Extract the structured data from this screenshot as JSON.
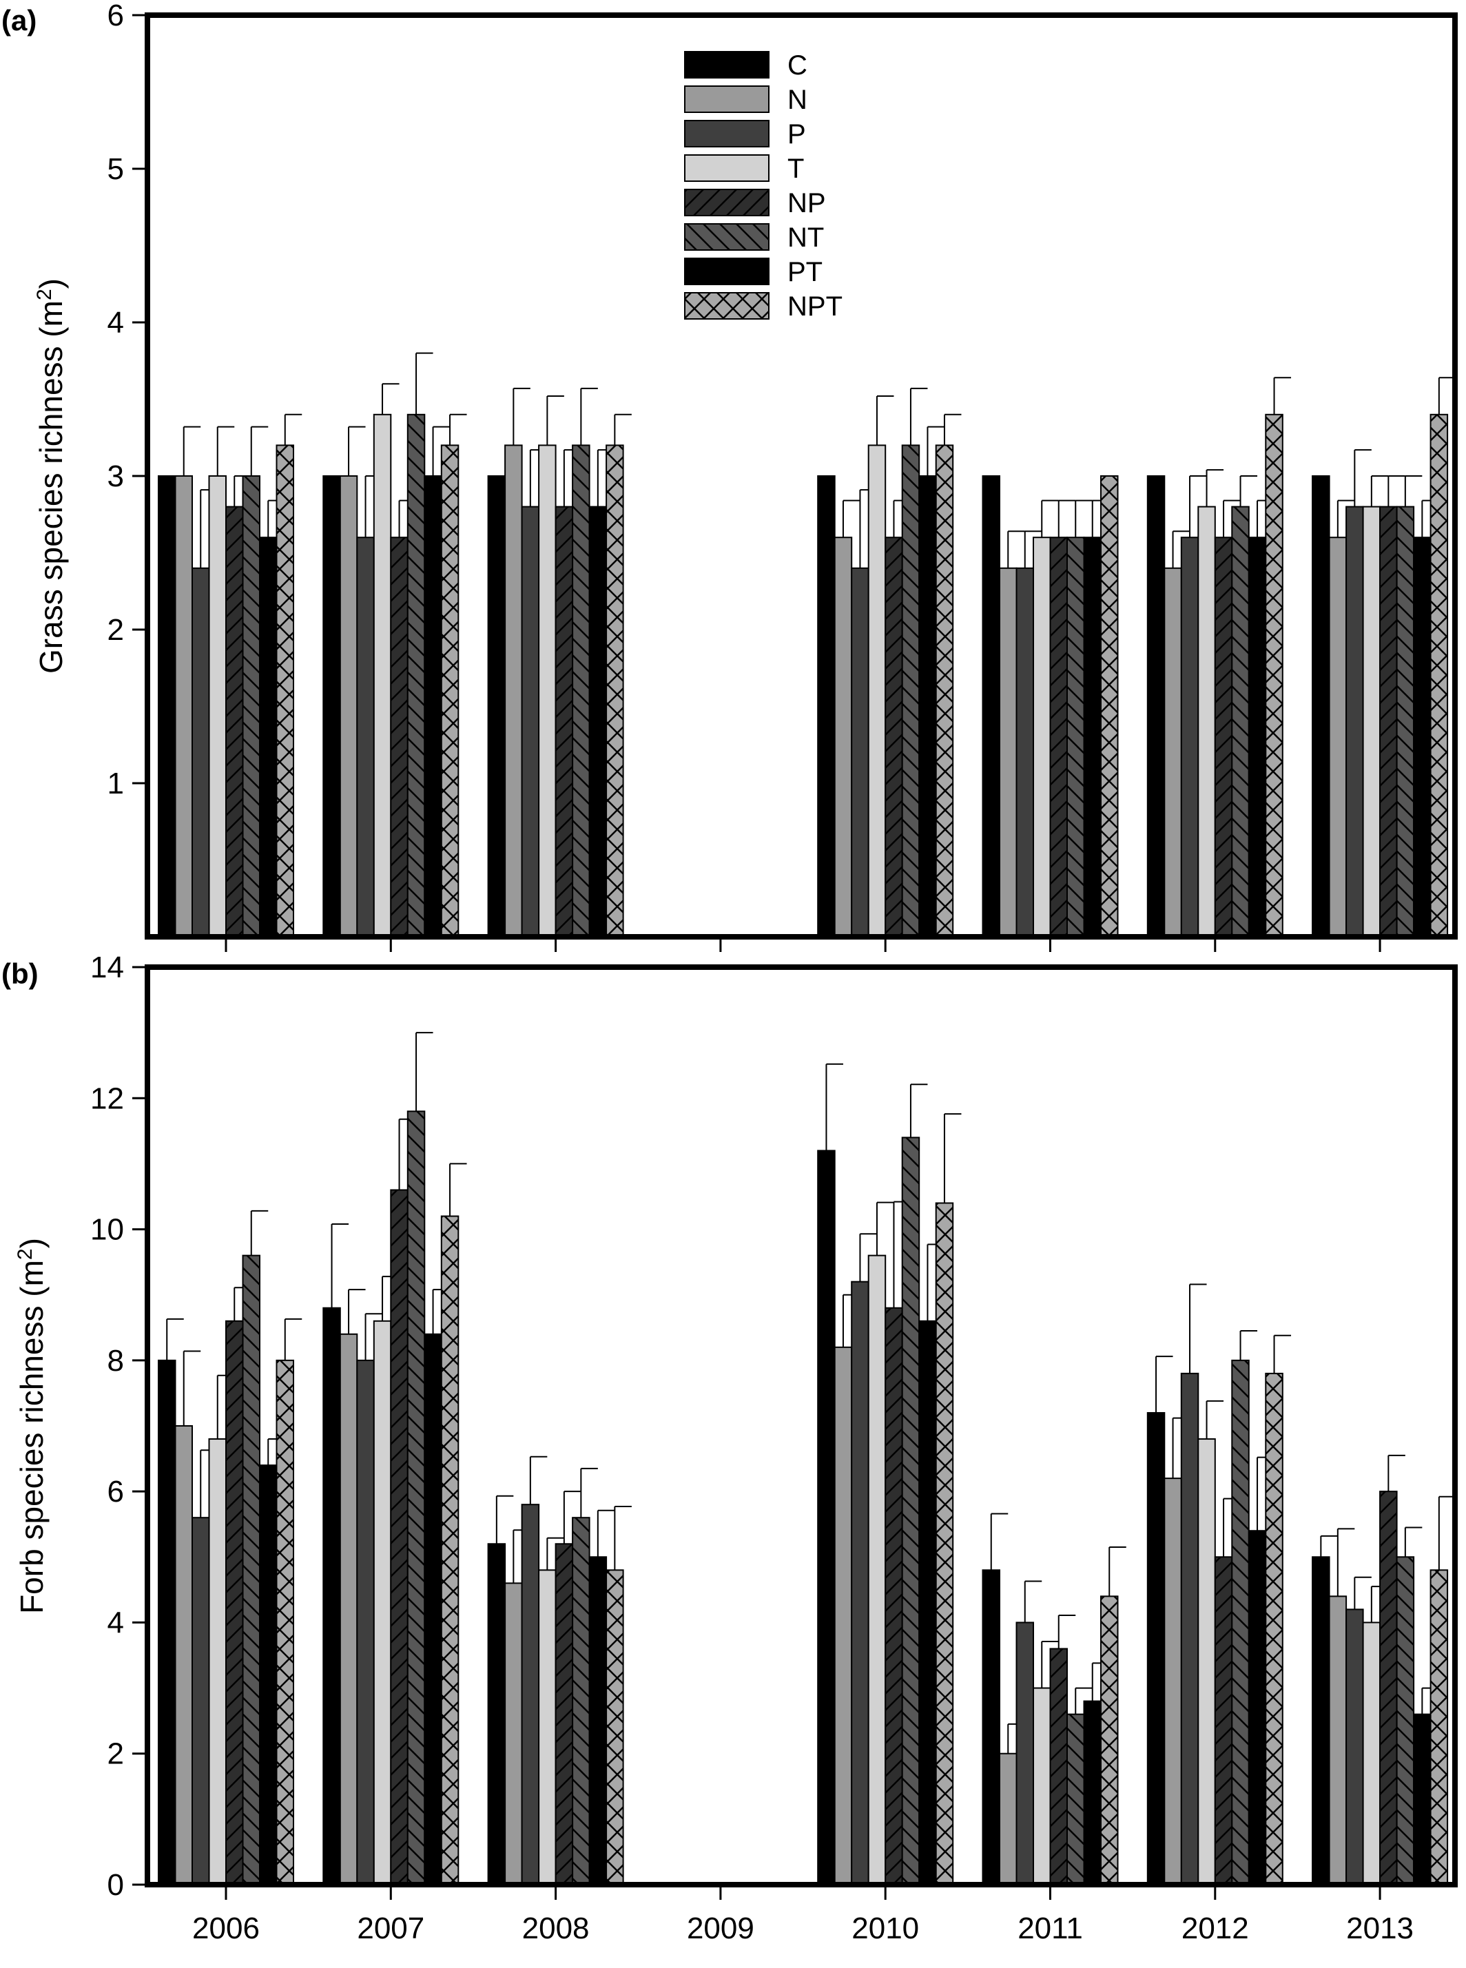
{
  "figure": {
    "x_categories": [
      "2006",
      "2007",
      "2008",
      "2009",
      "2010",
      "2011",
      "2012",
      "2013"
    ],
    "legend": [
      "C",
      "N",
      "P",
      "T",
      "NP",
      "NT",
      "PT",
      "NPT"
    ]
  },
  "series_styles": [
    {
      "name": "C",
      "fill": "#000000",
      "pattern": "none"
    },
    {
      "name": "N",
      "fill": "#9a9a9a",
      "pattern": "none"
    },
    {
      "name": "P",
      "fill": "#3f3f3f",
      "pattern": "none"
    },
    {
      "name": "T",
      "fill": "#d2d2d2",
      "pattern": "none"
    },
    {
      "name": "NP",
      "fill": "#2e2e2e",
      "pattern": "forward-diagonal"
    },
    {
      "name": "NT",
      "fill": "#575757",
      "pattern": "backward-diagonal"
    },
    {
      "name": "PT",
      "fill": "#000000",
      "pattern": "none"
    },
    {
      "name": "NPT",
      "fill": "#a8a8a8",
      "pattern": "crosshatch"
    }
  ],
  "chart_data": [
    {
      "panel": "(a)",
      "type": "bar",
      "ylabel": "Grass species richness (m",
      "ylabel_sup": "2",
      "ylabel_close": ")",
      "ylim": [
        0,
        6
      ],
      "yticks": [
        1,
        2,
        3,
        4,
        5,
        6
      ],
      "categories": [
        "2006",
        "2007",
        "2008",
        "2009",
        "2010",
        "2011",
        "2012",
        "2013"
      ],
      "legend_position": "top-center",
      "series": [
        {
          "name": "C",
          "values": [
            3.0,
            3.0,
            3.0,
            null,
            3.0,
            3.0,
            3.0,
            3.0
          ],
          "errors": [
            0,
            0,
            0,
            null,
            0,
            0,
            0,
            0
          ]
        },
        {
          "name": "N",
          "values": [
            3.0,
            3.0,
            3.2,
            null,
            2.6,
            2.4,
            2.4,
            2.6
          ],
          "errors": [
            0.32,
            0.32,
            0.37,
            null,
            0.24,
            0.24,
            0.24,
            0.24
          ]
        },
        {
          "name": "P",
          "values": [
            2.4,
            2.6,
            2.8,
            null,
            2.4,
            2.4,
            2.6,
            2.8
          ],
          "errors": [
            0.51,
            0.4,
            0.37,
            null,
            0.51,
            0.24,
            0.4,
            0.37
          ]
        },
        {
          "name": "T",
          "values": [
            3.0,
            3.4,
            3.2,
            null,
            3.2,
            2.6,
            2.8,
            2.8
          ],
          "errors": [
            0.32,
            0.2,
            0.32,
            null,
            0.32,
            0.24,
            0.24,
            0.2
          ]
        },
        {
          "name": "NP",
          "values": [
            2.8,
            2.6,
            2.8,
            null,
            2.6,
            2.6,
            2.6,
            2.8
          ],
          "errors": [
            0.2,
            0.24,
            0.37,
            null,
            0.24,
            0.24,
            0.24,
            0.2
          ]
        },
        {
          "name": "NT",
          "values": [
            3.0,
            3.4,
            3.2,
            null,
            3.2,
            2.6,
            2.8,
            2.8
          ],
          "errors": [
            0.32,
            0.4,
            0.37,
            null,
            0.37,
            0.24,
            0.2,
            0.2
          ]
        },
        {
          "name": "PT",
          "values": [
            2.6,
            3.0,
            2.8,
            null,
            3.0,
            2.6,
            2.6,
            2.6
          ],
          "errors": [
            0.24,
            0.32,
            0.37,
            null,
            0.32,
            0.24,
            0.24,
            0.24
          ]
        },
        {
          "name": "NPT",
          "values": [
            3.2,
            3.2,
            3.2,
            null,
            3.2,
            3.0,
            3.4,
            3.4
          ],
          "errors": [
            0.2,
            0.2,
            0.2,
            null,
            0.2,
            0,
            0.24,
            0.24
          ]
        }
      ]
    },
    {
      "panel": "(b)",
      "type": "bar",
      "ylabel": "Forb species richness (m",
      "ylabel_sup": "2",
      "ylabel_close": ")",
      "ylim": [
        0,
        14
      ],
      "yticks": [
        0,
        2,
        4,
        6,
        8,
        10,
        12,
        14
      ],
      "categories": [
        "2006",
        "2007",
        "2008",
        "2009",
        "2010",
        "2011",
        "2012",
        "2013"
      ],
      "series": [
        {
          "name": "C",
          "values": [
            8.0,
            8.8,
            5.2,
            null,
            11.2,
            4.8,
            7.2,
            5.0
          ],
          "errors": [
            0.63,
            1.28,
            0.73,
            null,
            1.32,
            0.86,
            0.86,
            0.32
          ]
        },
        {
          "name": "N",
          "values": [
            7.0,
            8.4,
            4.6,
            null,
            8.2,
            2.0,
            6.2,
            4.4
          ],
          "errors": [
            1.14,
            0.68,
            0.81,
            null,
            0.8,
            0.45,
            0.92,
            1.03
          ]
        },
        {
          "name": "P",
          "values": [
            5.6,
            8.0,
            5.8,
            null,
            9.2,
            4.0,
            7.8,
            4.2
          ],
          "errors": [
            1.03,
            0.71,
            0.73,
            null,
            0.73,
            0.63,
            1.36,
            0.49
          ]
        },
        {
          "name": "T",
          "values": [
            6.8,
            8.6,
            4.8,
            null,
            9.6,
            3.0,
            6.8,
            4.0
          ],
          "errors": [
            0.97,
            0.68,
            0.49,
            null,
            0.81,
            0.71,
            0.58,
            0.55
          ]
        },
        {
          "name": "NP",
          "values": [
            8.6,
            10.6,
            5.2,
            null,
            8.8,
            3.6,
            5.0,
            6.0
          ],
          "errors": [
            0.51,
            1.08,
            0.8,
            null,
            1.62,
            0.51,
            0.89,
            0.55
          ]
        },
        {
          "name": "NT",
          "values": [
            9.6,
            11.8,
            5.6,
            null,
            11.4,
            2.6,
            8.0,
            5.0
          ],
          "errors": [
            0.68,
            1.2,
            0.75,
            null,
            0.81,
            0.4,
            0.45,
            0.45
          ]
        },
        {
          "name": "PT",
          "values": [
            6.4,
            8.4,
            5.0,
            null,
            8.6,
            2.8,
            5.4,
            2.6
          ],
          "errors": [
            0.4,
            0.68,
            0.71,
            null,
            1.17,
            0.58,
            1.12,
            0.4
          ]
        },
        {
          "name": "NPT",
          "values": [
            8.0,
            10.2,
            4.8,
            null,
            10.4,
            4.4,
            7.8,
            4.8
          ],
          "errors": [
            0.63,
            0.8,
            0.97,
            null,
            1.36,
            0.75,
            0.58,
            1.12
          ]
        }
      ]
    }
  ]
}
